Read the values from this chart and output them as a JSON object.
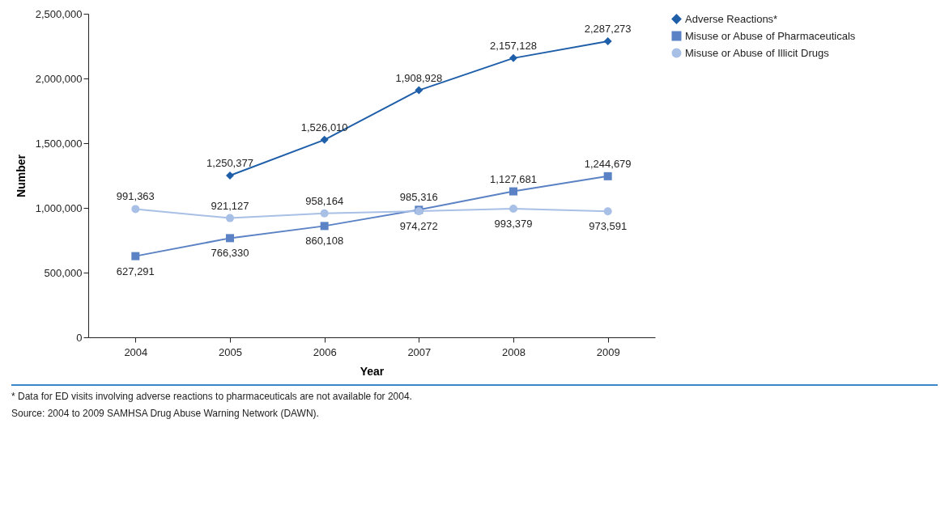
{
  "chart_data": {
    "type": "line",
    "xlabel": "Year",
    "ylabel": "Number",
    "categories": [
      "2004",
      "2005",
      "2006",
      "2007",
      "2008",
      "2009"
    ],
    "series": [
      {
        "name": "Adverse Reactions*",
        "color": "#1f5ea8",
        "marker": "diamond",
        "values": [
          null,
          1250377,
          1526010,
          1908928,
          2157128,
          2287273
        ],
        "value_labels": [
          null,
          "1,250,377",
          "1,526,010",
          "1,908,928",
          "2,157,128",
          "2,287,273"
        ]
      },
      {
        "name": "Misuse or Abuse of Pharmaceuticals",
        "color": "#5b82c4",
        "marker": "square",
        "values": [
          627291,
          766330,
          860108,
          985316,
          1127681,
          1244679
        ],
        "value_labels": [
          "627,291",
          "766,330",
          "860,108",
          "985,316",
          "1,127,681",
          "1,244,679"
        ]
      },
      {
        "name": "Misuse or Abuse of Illicit Drugs",
        "color": "#a8bfe6",
        "marker": "circle",
        "values": [
          991363,
          921127,
          958164,
          974272,
          993379,
          973591
        ],
        "value_labels": [
          "991,363",
          "921,127",
          "958,164",
          "974,272",
          "993,379",
          "973,591"
        ]
      }
    ],
    "ylim": [
      0,
      2500000
    ],
    "yticks": [
      0,
      {
        "value": 500000,
        "label": "500,000"
      },
      {
        "value": 1000000,
        "label": "1,000,000"
      },
      {
        "value": 1500000,
        "label": "1,500,000"
      },
      {
        "value": 2000000,
        "label": "2,000,000"
      },
      {
        "value": 2500000,
        "label": "2,500,000"
      }
    ],
    "grid": false,
    "legend": "right",
    "annotations": [
      "* Data for ED visits involving adverse reactions to pharmaceuticals are not available for 2004.",
      "Source: 2004 to 2009 SAMHSA Drug Abuse Warning Network (DAWN)."
    ]
  }
}
